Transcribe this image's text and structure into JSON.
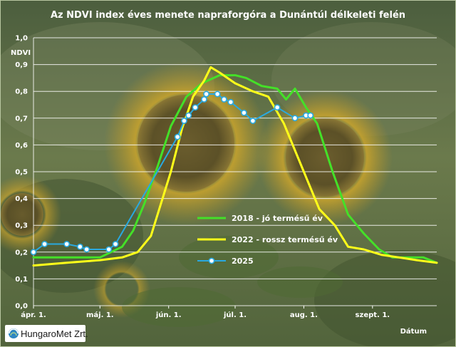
{
  "colors": {
    "background_top": "#4c5e3e",
    "background_mid": "#6b7a4c",
    "background_bottom": "#55673e",
    "grid": "#ffffff",
    "text": "#ffffff",
    "sunflower": "#c9a227"
  },
  "logo": {
    "text": "HungaroMet Zrt."
  },
  "chart_data": {
    "type": "line",
    "title": "Az NDVI index éves menete napraforgóra a Dunántúl délkeleti felén",
    "ylabel": "NDVI",
    "xlabel": "Dátum",
    "ylim": [
      0,
      1
    ],
    "yticks": [
      "0,0",
      "0,1",
      "0,2",
      "0,3",
      "0,4",
      "0,5",
      "0,6",
      "0,7",
      "0,8",
      "0,9",
      "1,0"
    ],
    "xlim": [
      "04-01",
      "09-30"
    ],
    "xticks": [
      {
        "label": "ápr. 1.",
        "date": "04-01"
      },
      {
        "label": "máj. 1.",
        "date": "05-01"
      },
      {
        "label": "jún. 1.",
        "date": "06-01"
      },
      {
        "label": "júl. 1.",
        "date": "07-01"
      },
      {
        "label": "aug. 1.",
        "date": "08-01"
      },
      {
        "label": "szept. 1.",
        "date": "09-01"
      }
    ],
    "grid": true,
    "legend_position": "right",
    "series": [
      {
        "name": "2018 - jó termésű év",
        "color": "#44e028",
        "marker": false,
        "points": [
          [
            "04-01",
            0.18
          ],
          [
            "04-16",
            0.18
          ],
          [
            "05-01",
            0.18
          ],
          [
            "05-11",
            0.22
          ],
          [
            "05-16",
            0.28
          ],
          [
            "05-21",
            0.38
          ],
          [
            "05-27",
            0.52
          ],
          [
            "06-02",
            0.67
          ],
          [
            "06-09",
            0.78
          ],
          [
            "06-16",
            0.83
          ],
          [
            "06-24",
            0.86
          ],
          [
            "07-01",
            0.86
          ],
          [
            "07-06",
            0.85
          ],
          [
            "07-13",
            0.82
          ],
          [
            "07-20",
            0.81
          ],
          [
            "07-24",
            0.77
          ],
          [
            "07-28",
            0.81
          ],
          [
            "08-02",
            0.74
          ],
          [
            "08-07",
            0.68
          ],
          [
            "08-14",
            0.5
          ],
          [
            "08-21",
            0.34
          ],
          [
            "08-28",
            0.27
          ],
          [
            "09-04",
            0.21
          ],
          [
            "09-10",
            0.18
          ],
          [
            "09-17",
            0.18
          ],
          [
            "09-24",
            0.18
          ],
          [
            "09-30",
            0.16
          ]
        ]
      },
      {
        "name": "2022 - rossz termésű év",
        "color": "#ffff1a",
        "marker": false,
        "points": [
          [
            "04-01",
            0.15
          ],
          [
            "04-16",
            0.16
          ],
          [
            "05-01",
            0.17
          ],
          [
            "05-11",
            0.18
          ],
          [
            "05-18",
            0.2
          ],
          [
            "05-24",
            0.26
          ],
          [
            "06-02",
            0.5
          ],
          [
            "06-07",
            0.66
          ],
          [
            "06-12",
            0.78
          ],
          [
            "06-17",
            0.84
          ],
          [
            "06-20",
            0.89
          ],
          [
            "06-24",
            0.87
          ],
          [
            "07-01",
            0.83
          ],
          [
            "07-09",
            0.8
          ],
          [
            "07-16",
            0.78
          ],
          [
            "07-23",
            0.68
          ],
          [
            "07-31",
            0.52
          ],
          [
            "08-08",
            0.36
          ],
          [
            "08-15",
            0.3
          ],
          [
            "08-21",
            0.22
          ],
          [
            "08-28",
            0.21
          ],
          [
            "09-05",
            0.19
          ],
          [
            "09-13",
            0.18
          ],
          [
            "09-21",
            0.17
          ],
          [
            "09-30",
            0.16
          ]
        ]
      },
      {
        "name": "2025",
        "color": "#29a9e0",
        "marker": true,
        "points": [
          [
            "04-01",
            0.2
          ],
          [
            "04-06",
            0.23
          ],
          [
            "04-16",
            0.23
          ],
          [
            "04-22",
            0.22
          ],
          [
            "04-25",
            0.21
          ],
          [
            "05-05",
            0.21
          ],
          [
            "05-08",
            0.23
          ],
          [
            "06-05",
            0.63
          ],
          [
            "06-08",
            0.69
          ],
          [
            "06-10",
            0.71
          ],
          [
            "06-13",
            0.74
          ],
          [
            "06-17",
            0.77
          ],
          [
            "06-18",
            0.79
          ],
          [
            "06-23",
            0.79
          ],
          [
            "06-26",
            0.77
          ],
          [
            "06-29",
            0.76
          ],
          [
            "07-05",
            0.72
          ],
          [
            "07-09",
            0.69
          ],
          [
            "07-20",
            0.74
          ],
          [
            "07-28",
            0.7
          ],
          [
            "08-02",
            0.71
          ],
          [
            "08-04",
            0.71
          ]
        ]
      }
    ]
  }
}
